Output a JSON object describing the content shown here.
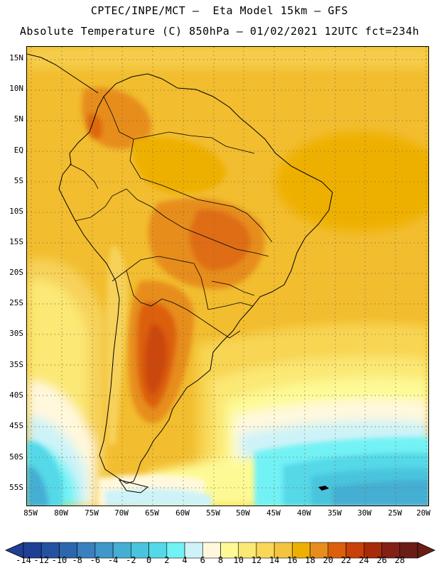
{
  "title_line1": "CPTEC/INPE/MCT –  Eta Model 15km – GFS",
  "title_line2": "Absolute Temperature (C) 850hPa – 01/02/2021 12UTC fct=234h",
  "lat_labels": [
    "15N",
    "10N",
    "5N",
    "EQ",
    "5S",
    "10S",
    "15S",
    "20S",
    "25S",
    "30S",
    "35S",
    "40S",
    "45S",
    "50S",
    "55S"
  ],
  "lon_labels": [
    "85W",
    "80W",
    "75W",
    "70W",
    "65W",
    "60W",
    "55W",
    "50W",
    "45W",
    "40W",
    "35W",
    "30W",
    "25W",
    "20W"
  ],
  "colorbar": {
    "labels": [
      "-14",
      "-12",
      "-10",
      "-8",
      "-6",
      "-4",
      "-2",
      "0",
      "2",
      "4",
      "6",
      "8",
      "10",
      "12",
      "14",
      "16",
      "18",
      "20",
      "22",
      "24",
      "26",
      "28"
    ],
    "colors": [
      "#1f3f94",
      "#2452a0",
      "#2c67ad",
      "#3a80bf",
      "#3f98c9",
      "#45aed3",
      "#4ac4dd",
      "#55d8e8",
      "#72f2f5",
      "#cdf3f8",
      "#fff8dd",
      "#fdfa96",
      "#fbe875",
      "#f9d758",
      "#f3c43d",
      "#eeb000",
      "#e78d1d",
      "#dc5f0e",
      "#c8400a",
      "#a72b08",
      "#832016",
      "#6a1d16"
    ]
  }
}
